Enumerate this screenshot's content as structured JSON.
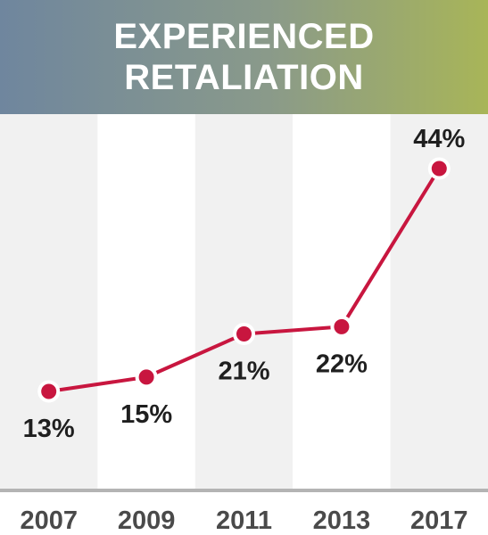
{
  "header": {
    "title_line1": "EXPERIENCED",
    "title_line2": "RETALIATION"
  },
  "colors": {
    "line": "#c8163f",
    "marker_fill": "#c8163f",
    "marker_stroke": "#ffffff",
    "band_dark": "#f1f1f1",
    "band_light": "#ffffff",
    "axis": "#b4b4b4"
  },
  "chart_data": {
    "type": "line",
    "title": "EXPERIENCED RETALIATION",
    "categories": [
      "2007",
      "2009",
      "2011",
      "2013",
      "2017"
    ],
    "series": [
      {
        "values": [
          13,
          15,
          21,
          22,
          44
        ]
      }
    ],
    "data_labels": [
      "13%",
      "15%",
      "21%",
      "22%",
      "44%"
    ],
    "xlabel": "",
    "ylabel": "",
    "ylim": [
      0,
      50
    ],
    "grid": false
  }
}
